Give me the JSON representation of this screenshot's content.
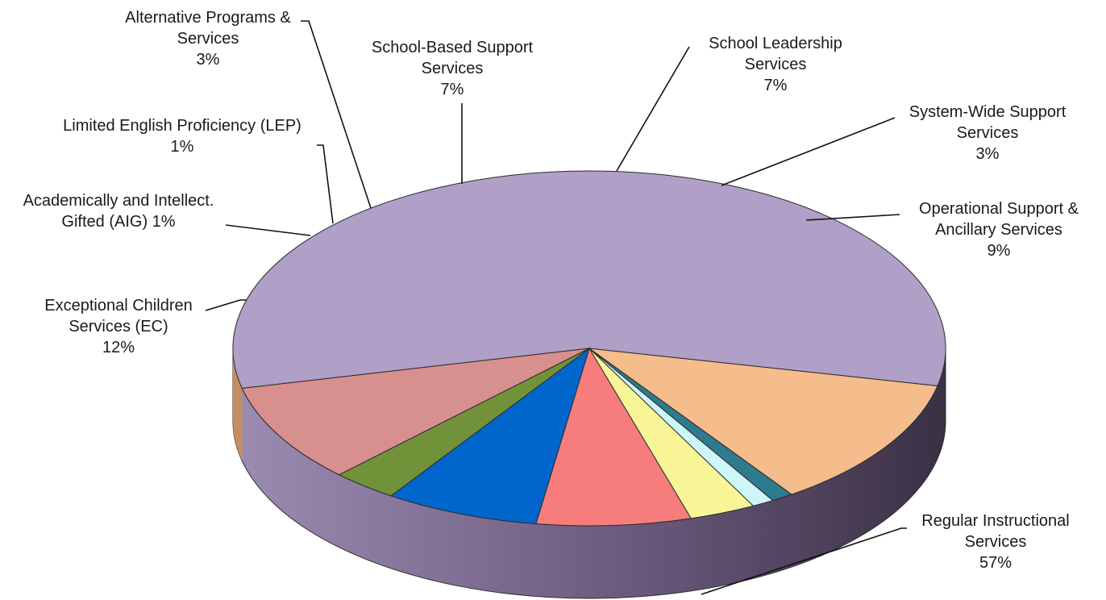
{
  "chart_data": {
    "type": "pie",
    "title": "",
    "style": "3d",
    "slices": [
      {
        "label": "Regular Instructional Services",
        "lines": [
          "Regular Instructional",
          "Services"
        ],
        "pct_label": "57%",
        "value": 57,
        "color": "#b09fc6"
      },
      {
        "label": "Exceptional Children Services (EC)",
        "lines": [
          "Exceptional Children",
          "Services (EC)"
        ],
        "pct_label": "12%",
        "value": 12,
        "color": "#f5bc8c"
      },
      {
        "label": "Academically and Intellect. Gifted (AIG)",
        "lines": [
          "Academically and Intellect.",
          "Gifted (AIG)  1%"
        ],
        "pct_label": "",
        "value": 1,
        "color": "#2e7b90"
      },
      {
        "label": "Limited English Proficiency (LEP)",
        "lines": [
          "Limited English Proficiency (LEP)"
        ],
        "pct_label": "1%",
        "value": 1,
        "color": "#ccf6f7"
      },
      {
        "label": "Alternative Programs & Services",
        "lines": [
          "Alternative Programs &",
          "Services"
        ],
        "pct_label": "3%",
        "value": 3,
        "color": "#f8f597"
      },
      {
        "label": "School-Based Support Services",
        "lines": [
          "School-Based Support",
          "Services"
        ],
        "pct_label": "7%",
        "value": 7,
        "color": "#f77d7d"
      },
      {
        "label": "School Leadership Services",
        "lines": [
          "School Leadership",
          "Services"
        ],
        "pct_label": "7%",
        "value": 7,
        "color": "#0066cc"
      },
      {
        "label": "System-Wide Support Services",
        "lines": [
          "System-Wide Support",
          "Services"
        ],
        "pct_label": "3%",
        "value": 3,
        "color": "#72923a"
      },
      {
        "label": "Operational Support & Ancillary Services",
        "lines": [
          "Operational Support &",
          "Ancillary Services"
        ],
        "pct_label": "9%",
        "value": 9,
        "color": "#d7908e"
      }
    ]
  }
}
